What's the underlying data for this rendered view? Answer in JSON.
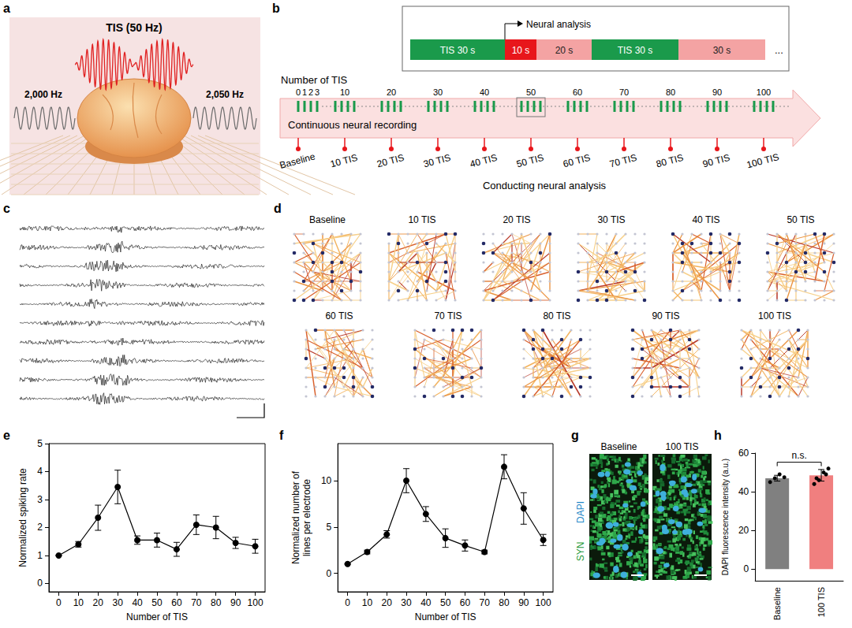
{
  "panels": {
    "a": {
      "letter": "a",
      "labels": {
        "center": "TIS (50 Hz)",
        "left": "2,000 Hz",
        "right": "2,050 Hz"
      }
    },
    "b": {
      "letter": "b",
      "schedule": [
        "TIS 30 s",
        "10 s",
        "20 s",
        "TIS 30 s",
        "30 s"
      ],
      "schedule_more": "...",
      "schedule_note": "Neural analysis",
      "axis_title": "Number of TIS",
      "ticks": [
        "0",
        "1",
        "2",
        "3",
        "10",
        "20",
        "30",
        "40",
        "50",
        "60",
        "70",
        "80",
        "90",
        "100"
      ],
      "recording": "Continuous neural recording",
      "analysis_points": [
        "Baseline",
        "10 TIS",
        "20 TIS",
        "30 TIS",
        "40 TIS",
        "50 TIS",
        "60 TIS",
        "70 TIS",
        "80 TIS",
        "90 TIS",
        "100 TIS"
      ],
      "analysis_title": "Conducting neural analysis"
    },
    "c": {
      "letter": "c"
    },
    "d": {
      "letter": "d",
      "networks": [
        "Baseline",
        "10 TIS",
        "20 TIS",
        "30 TIS",
        "40 TIS",
        "50 TIS",
        "60 TIS",
        "70 TIS",
        "80 TIS",
        "90 TIS",
        "100 TIS"
      ]
    },
    "g": {
      "letter": "g",
      "images": [
        "Baseline",
        "100 TIS"
      ],
      "stains": [
        "DAPI",
        "SYN"
      ]
    }
  },
  "chart_data": [
    {
      "panel": "e",
      "type": "line",
      "x_label": "Number of TIS",
      "y_label": "Normalized spiking rate",
      "x": [
        0,
        10,
        20,
        30,
        40,
        50,
        60,
        70,
        80,
        90,
        100
      ],
      "values": [
        1.0,
        1.4,
        2.35,
        3.45,
        1.55,
        1.55,
        1.22,
        2.1,
        2.0,
        1.45,
        1.33
      ],
      "error": [
        0.0,
        0.1,
        0.45,
        0.6,
        0.15,
        0.25,
        0.25,
        0.35,
        0.4,
        0.2,
        0.25
      ],
      "color": "#000000",
      "marker": "circle",
      "xlim": [
        -5,
        105
      ],
      "xticks": [
        0,
        10,
        20,
        30,
        40,
        50,
        60,
        70,
        80,
        90,
        100
      ],
      "ylim": [
        -0.3,
        5
      ],
      "yticks": [
        0,
        1,
        2,
        3,
        4,
        5
      ],
      "grid": false
    },
    {
      "panel": "f",
      "type": "line",
      "x_label": "Number of TIS",
      "y_label": "Normalized number of lines per electrode",
      "x": [
        0,
        10,
        20,
        30,
        40,
        50,
        60,
        70,
        80,
        90,
        100
      ],
      "values": [
        1.0,
        2.3,
        4.2,
        10.0,
        6.4,
        3.8,
        3.0,
        2.3,
        11.5,
        7.0,
        3.6
      ],
      "error": [
        0.0,
        0.2,
        0.4,
        1.3,
        0.8,
        1.0,
        0.6,
        0.2,
        1.3,
        1.7,
        0.6
      ],
      "color": "#000000",
      "marker": "circle",
      "xlim": [
        -5,
        105
      ],
      "xticks": [
        0,
        10,
        20,
        30,
        40,
        50,
        60,
        70,
        80,
        90,
        100
      ],
      "ylim": [
        -2,
        14
      ],
      "yticks": [
        0,
        5,
        10
      ],
      "grid": false
    },
    {
      "panel": "h",
      "type": "bar",
      "y_label": "DAPI fluorescence intensity (a.u.)",
      "categories": [
        "Baseline",
        "100 TIS"
      ],
      "values": [
        47,
        48.5
      ],
      "error": [
        1.5,
        3
      ],
      "points": [
        [
          45,
          47,
          49,
          47.5
        ],
        [
          44,
          46,
          50,
          52,
          47,
          49
        ]
      ],
      "colors": [
        "#808080",
        "#f07f7f"
      ],
      "annotations": [
        "n.s."
      ],
      "ylim": [
        -6,
        60
      ],
      "yticks": [
        0,
        20,
        40,
        60
      ],
      "grid": false
    }
  ]
}
